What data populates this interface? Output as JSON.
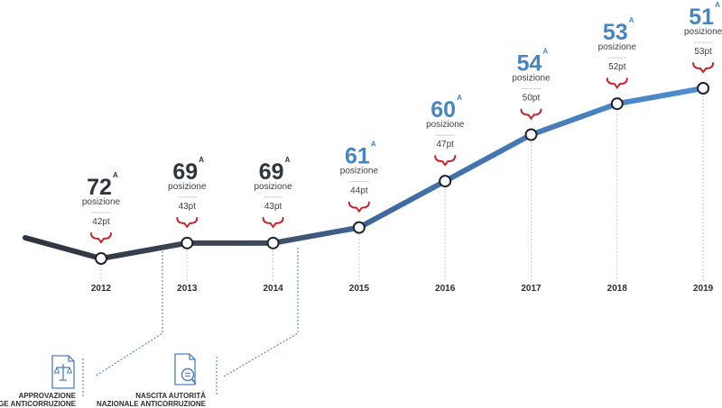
{
  "chart_data": {
    "type": "line",
    "title": "",
    "x": [
      "2012",
      "2013",
      "2014",
      "2015",
      "2016",
      "2017",
      "2018",
      "2019"
    ],
    "series": [
      {
        "rank": [
          72,
          69,
          69,
          61,
          60,
          54,
          53,
          51
        ],
        "score": [
          42,
          43,
          43,
          44,
          47,
          50,
          52,
          53
        ]
      }
    ],
    "rank_label": "posizione",
    "rank_sup": "A",
    "score_suffix": "pt",
    "grid": false,
    "legend": "none"
  },
  "colors": {
    "dark": "#2f3540",
    "mid": "#3f5a7e",
    "blue": "#4684c4",
    "bracket": "#c4262e",
    "dashed_blue": "#3e78b8",
    "dotted_grey": "#c6c6c6"
  },
  "milestones": [
    {
      "icon": "scales-document-icon",
      "line1": "APPROVAZIONE",
      "line2": "LEGGE ANTICORRUZIONE"
    },
    {
      "icon": "magnifier-document-icon",
      "line1": "NASCITA AUTORITÀ",
      "line2": "NAZIONALE ANTICORRUZIONE"
    }
  ]
}
